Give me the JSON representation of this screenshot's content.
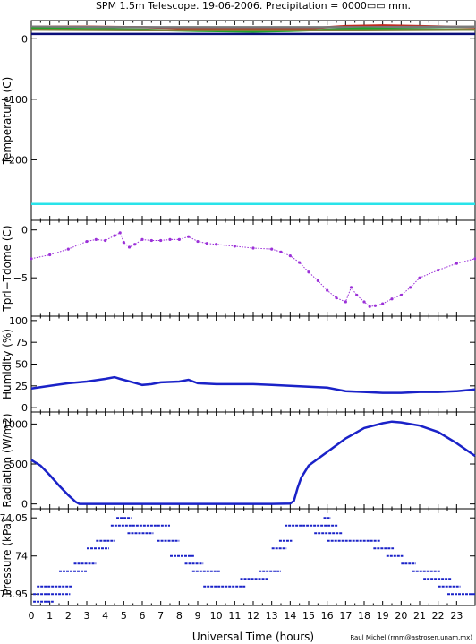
{
  "title": "SPM 1.5m Telescope. 19-06-2006. Precipitation = 0000▭▭ mm.",
  "xlabel": "Universal Time (hours)",
  "credit": "Raul Michel (rmm@astrosen.unam.mx)",
  "colors": {
    "axis": "#000000",
    "navy": "#0b0f7a",
    "blue": "#1a22c8",
    "cyan": "#29e3ea",
    "purple": "#9b30d8",
    "red": "#c0281e",
    "green": "#1fa52a",
    "gray": "#7a7a7a",
    "olive": "#7f7f3a"
  },
  "chart_data": [
    {
      "type": "line",
      "panel": "temperature",
      "ylabel": "Temperature (C)",
      "xlim": [
        0,
        24
      ],
      "ylim": [
        -300,
        30
      ],
      "x_ticks": [
        0,
        1,
        2,
        3,
        4,
        5,
        6,
        7,
        8,
        9,
        10,
        11,
        12,
        13,
        14,
        15,
        16,
        17,
        18,
        19,
        20,
        21,
        22,
        23
      ],
      "y_ticks": [
        0,
        -100,
        -200
      ],
      "y_tick_labels": [
        "0",
        "−100",
        "−200"
      ],
      "series": [
        {
          "color_key": "red",
          "x": [
            0,
            3,
            6,
            9,
            12,
            15,
            17,
            19,
            21,
            24
          ],
          "y": [
            20,
            20,
            19,
            17,
            16,
            17,
            21,
            22,
            21,
            19
          ]
        },
        {
          "color_key": "gray",
          "x": [
            0,
            6,
            12,
            18,
            24
          ],
          "y": [
            20,
            19,
            19,
            19,
            20
          ]
        },
        {
          "color_key": "green",
          "x": [
            0,
            3,
            6,
            9,
            12,
            14,
            16,
            18,
            20,
            24
          ],
          "y": [
            17,
            16,
            15,
            13,
            12,
            13,
            15,
            17,
            16,
            15
          ]
        },
        {
          "color_key": "olive",
          "x": [
            0,
            6,
            12,
            18,
            24
          ],
          "y": [
            15,
            14,
            14,
            14,
            15
          ]
        },
        {
          "color_key": "navy",
          "x": [
            0,
            24
          ],
          "y": [
            8,
            8
          ]
        },
        {
          "color_key": "cyan",
          "x": [
            0,
            24
          ],
          "y": [
            -273,
            -273
          ]
        }
      ]
    },
    {
      "type": "scatter",
      "panel": "tpri-tdome",
      "ylabel": "Tpri−Tdome (C)",
      "xlim": [
        0,
        24
      ],
      "ylim": [
        -9,
        1
      ],
      "y_ticks": [
        0,
        -5
      ],
      "y_tick_labels": [
        "0",
        "−5"
      ],
      "series": [
        {
          "color_key": "purple",
          "x": [
            0,
            1,
            2,
            3,
            3.5,
            4,
            4.5,
            4.8,
            5,
            5.3,
            5.6,
            6,
            6.5,
            7,
            7.5,
            8,
            8.5,
            9,
            9.5,
            10,
            11,
            12,
            13,
            13.5,
            14,
            14.5,
            15,
            15.5,
            16,
            16.5,
            17,
            17.3,
            17.6,
            18,
            18.3,
            18.6,
            19,
            19.5,
            20,
            20.5,
            21,
            22,
            23,
            24
          ],
          "y": [
            -3.0,
            -2.6,
            -2.0,
            -1.2,
            -1.0,
            -1.1,
            -0.6,
            -0.3,
            -1.3,
            -1.8,
            -1.5,
            -1.0,
            -1.1,
            -1.1,
            -1.0,
            -1.0,
            -0.7,
            -1.2,
            -1.4,
            -1.5,
            -1.7,
            -1.9,
            -2.0,
            -2.3,
            -2.7,
            -3.4,
            -4.4,
            -5.3,
            -6.3,
            -7.1,
            -7.5,
            -6.0,
            -6.8,
            -7.5,
            -8.0,
            -7.9,
            -7.7,
            -7.2,
            -6.8,
            -6.0,
            -5.0,
            -4.2,
            -3.5,
            -3.0
          ]
        }
      ]
    },
    {
      "type": "line",
      "panel": "humidity",
      "ylabel": "Humidity (%)",
      "xlim": [
        0,
        24
      ],
      "ylim": [
        -5,
        105
      ],
      "y_ticks": [
        0,
        25,
        50,
        75,
        100
      ],
      "y_tick_labels": [
        "0",
        "25",
        "50",
        "75",
        "100"
      ],
      "series": [
        {
          "color_key": "blue",
          "x": [
            0,
            1,
            2,
            3,
            4,
            4.5,
            4.8,
            5.5,
            6,
            6.5,
            7,
            8,
            8.5,
            9,
            10,
            12,
            13,
            14,
            15,
            16,
            17,
            18,
            19,
            20,
            21,
            22,
            23,
            24
          ],
          "y": [
            22,
            25,
            28,
            30,
            33,
            35,
            33,
            29,
            26,
            27,
            29,
            30,
            32,
            28,
            27,
            27,
            26,
            25,
            24,
            23,
            19,
            18,
            17,
            17,
            18,
            18,
            19,
            21
          ]
        }
      ]
    },
    {
      "type": "line",
      "panel": "radiation",
      "ylabel": "Radiation (W/m2)",
      "xlim": [
        0,
        24
      ],
      "ylim": [
        -60,
        1150
      ],
      "y_ticks": [
        0,
        500,
        1000
      ],
      "y_tick_labels": [
        "0",
        "500",
        "1000"
      ],
      "series": [
        {
          "color_key": "blue",
          "x": [
            0,
            0.5,
            1,
            1.5,
            2,
            2.4,
            2.6,
            5,
            8,
            11,
            13,
            14,
            14.2,
            14.4,
            14.6,
            15,
            16,
            17,
            18,
            19,
            19.5,
            20,
            21,
            22,
            23,
            24
          ],
          "y": [
            550,
            480,
            360,
            230,
            110,
            25,
            0,
            0,
            0,
            0,
            0,
            5,
            40,
            200,
            330,
            480,
            650,
            820,
            950,
            1010,
            1030,
            1020,
            980,
            900,
            760,
            600
          ]
        }
      ]
    },
    {
      "type": "scatter",
      "panel": "pressure",
      "ylabel": "Pressure (kPa)",
      "xlim": [
        0,
        24
      ],
      "ylim": [
        73.935,
        74.062
      ],
      "y_ticks": [
        74.05,
        74.0,
        73.95
      ],
      "y_tick_labels": [
        "74.05",
        "74",
        "73.95"
      ],
      "segments": [
        {
          "x0": 0.1,
          "x1": 1.2,
          "y": 73.94
        },
        {
          "x0": 0.1,
          "x1": 2.1,
          "y": 73.95
        },
        {
          "x0": 0.3,
          "x1": 2.2,
          "y": 73.96
        },
        {
          "x0": 1.5,
          "x1": 3.0,
          "y": 73.98
        },
        {
          "x0": 2.3,
          "x1": 3.5,
          "y": 73.99
        },
        {
          "x0": 3.0,
          "x1": 4.2,
          "y": 74.01
        },
        {
          "x0": 3.5,
          "x1": 4.5,
          "y": 74.02
        },
        {
          "x0": 4.3,
          "x1": 7.5,
          "y": 74.04
        },
        {
          "x0": 4.6,
          "x1": 5.4,
          "y": 74.05
        },
        {
          "x0": 5.2,
          "x1": 6.6,
          "y": 74.03
        },
        {
          "x0": 6.8,
          "x1": 8.0,
          "y": 74.02
        },
        {
          "x0": 7.5,
          "x1": 8.8,
          "y": 74.0
        },
        {
          "x0": 8.3,
          "x1": 9.3,
          "y": 73.99
        },
        {
          "x0": 8.7,
          "x1": 10.2,
          "y": 73.98
        },
        {
          "x0": 9.3,
          "x1": 11.6,
          "y": 73.96
        },
        {
          "x0": 11.3,
          "x1": 12.8,
          "y": 73.97
        },
        {
          "x0": 12.3,
          "x1": 13.5,
          "y": 73.98
        },
        {
          "x0": 13.0,
          "x1": 13.8,
          "y": 74.01
        },
        {
          "x0": 13.4,
          "x1": 14.1,
          "y": 74.02
        },
        {
          "x0": 13.7,
          "x1": 16.6,
          "y": 74.04
        },
        {
          "x0": 15.8,
          "x1": 16.2,
          "y": 74.05
        },
        {
          "x0": 15.3,
          "x1": 16.8,
          "y": 74.03
        },
        {
          "x0": 16.0,
          "x1": 18.9,
          "y": 74.02
        },
        {
          "x0": 18.5,
          "x1": 19.6,
          "y": 74.01
        },
        {
          "x0": 19.2,
          "x1": 20.1,
          "y": 74.0
        },
        {
          "x0": 20.0,
          "x1": 20.8,
          "y": 73.99
        },
        {
          "x0": 20.6,
          "x1": 22.1,
          "y": 73.98
        },
        {
          "x0": 21.2,
          "x1": 22.7,
          "y": 73.97
        },
        {
          "x0": 22.0,
          "x1": 23.2,
          "y": 73.96
        },
        {
          "x0": 22.5,
          "x1": 24.0,
          "y": 73.95
        }
      ]
    }
  ]
}
